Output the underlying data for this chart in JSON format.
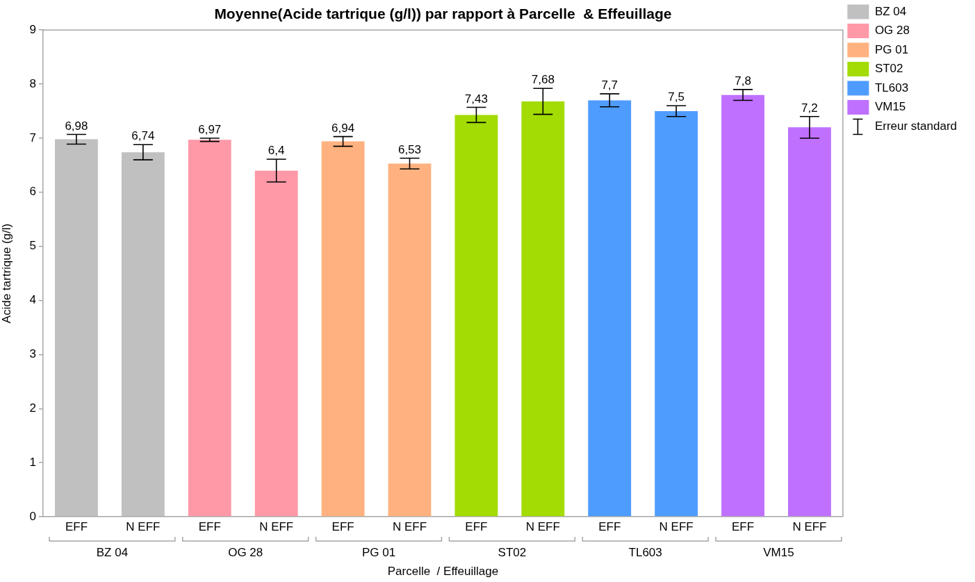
{
  "chart_data": {
    "type": "bar",
    "title": "Moyenne(Acide tartrique (g/l)) par rapport à Parcelle  & Effeuillage",
    "xlabel": "Parcelle  / Effeuillage",
    "ylabel": "Acide tartrique (g/l)",
    "categories": [
      "EFF",
      "N EFF",
      "EFF",
      "N EFF",
      "EFF",
      "N EFF",
      "EFF",
      "N EFF",
      "EFF",
      "N EFF",
      "EFF",
      "N EFF"
    ],
    "series": [
      {
        "name": "BZ 04",
        "color": "#c0c0c0",
        "values": [
          6.98,
          6.74,
          null,
          null,
          null,
          null,
          null,
          null,
          null,
          null,
          null,
          null
        ],
        "errors": [
          0.09,
          0.14,
          null,
          null,
          null,
          null,
          null,
          null,
          null,
          null,
          null,
          null
        ],
        "value_labels": [
          "6,98",
          "6,74",
          null,
          null,
          null,
          null,
          null,
          null,
          null,
          null,
          null,
          null
        ]
      },
      {
        "name": "OG 28",
        "color": "#ff99a8",
        "values": [
          null,
          null,
          6.97,
          6.4,
          null,
          null,
          null,
          null,
          null,
          null,
          null,
          null
        ],
        "errors": [
          null,
          null,
          0.03,
          0.21,
          null,
          null,
          null,
          null,
          null,
          null,
          null,
          null
        ],
        "value_labels": [
          null,
          null,
          "6,97",
          "6,4",
          null,
          null,
          null,
          null,
          null,
          null,
          null,
          null
        ]
      },
      {
        "name": "PG 01",
        "color": "#ffb27f",
        "values": [
          null,
          null,
          null,
          null,
          6.94,
          6.53,
          null,
          null,
          null,
          null,
          null,
          null
        ],
        "errors": [
          null,
          null,
          null,
          null,
          0.09,
          0.1,
          null,
          null,
          null,
          null,
          null,
          null
        ],
        "value_labels": [
          null,
          null,
          null,
          null,
          "6,94",
          "6,53",
          null,
          null,
          null,
          null,
          null,
          null
        ]
      },
      {
        "name": "ST02",
        "color": "#a2dc04",
        "values": [
          null,
          null,
          null,
          null,
          null,
          null,
          7.43,
          7.68,
          null,
          null,
          null,
          null
        ],
        "errors": [
          null,
          null,
          null,
          null,
          null,
          null,
          0.14,
          0.24,
          null,
          null,
          null,
          null
        ],
        "value_labels": [
          null,
          null,
          null,
          null,
          null,
          null,
          "7,43",
          "7,68",
          null,
          null,
          null,
          null
        ]
      },
      {
        "name": "TL603",
        "color": "#4f9cff",
        "values": [
          null,
          null,
          null,
          null,
          null,
          null,
          null,
          null,
          7.7,
          7.5,
          null,
          null
        ],
        "errors": [
          null,
          null,
          null,
          null,
          null,
          null,
          null,
          null,
          0.12,
          0.1,
          null,
          null
        ],
        "value_labels": [
          null,
          null,
          null,
          null,
          null,
          null,
          null,
          null,
          "7,7",
          "7,5",
          null,
          null
        ]
      },
      {
        "name": "VM15",
        "color": "#c070ff",
        "values": [
          null,
          null,
          null,
          null,
          null,
          null,
          null,
          null,
          null,
          null,
          7.8,
          7.2
        ],
        "errors": [
          null,
          null,
          null,
          null,
          null,
          null,
          null,
          null,
          null,
          null,
          0.1,
          0.2
        ],
        "value_labels": [
          null,
          null,
          null,
          null,
          null,
          null,
          null,
          null,
          null,
          null,
          "7,8",
          "7,2"
        ]
      }
    ],
    "ylim": [
      0,
      9
    ],
    "yticks": [
      0,
      1,
      2,
      3,
      4,
      5,
      6,
      7,
      8,
      9
    ],
    "grid": false,
    "legend": "top right",
    "annotations": [
      "Erreur standard"
    ]
  }
}
